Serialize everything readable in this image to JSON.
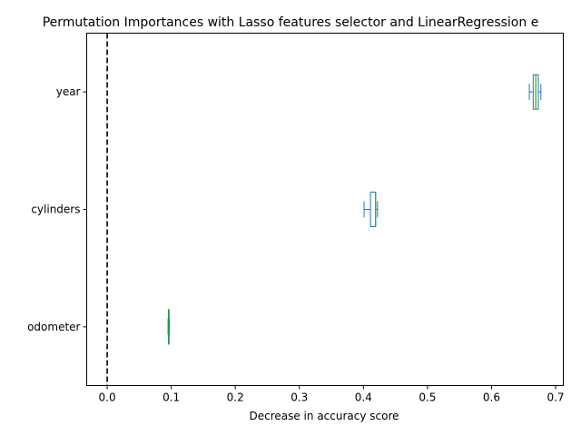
{
  "chart_data": {
    "type": "box",
    "orientation": "horizontal",
    "title": "Permutation Importances with Lasso features selector and LinearRegression e",
    "xlabel": "Decrease in accuracy score",
    "ylabel": "",
    "xlim": [
      -0.032,
      0.712
    ],
    "xticks": [
      {
        "value": 0.0,
        "label": "0.0"
      },
      {
        "value": 0.1,
        "label": "0.1"
      },
      {
        "value": 0.2,
        "label": "0.2"
      },
      {
        "value": 0.3,
        "label": "0.3"
      },
      {
        "value": 0.4,
        "label": "0.4"
      },
      {
        "value": 0.5,
        "label": "0.5"
      },
      {
        "value": 0.6,
        "label": "0.6"
      },
      {
        "value": 0.7,
        "label": "0.7"
      }
    ],
    "reference_line": {
      "x": 0.0,
      "style": "dashed",
      "color": "#000000"
    },
    "categories": [
      "year",
      "cylinders",
      "odometer"
    ],
    "boxes": [
      {
        "label": "year",
        "whisker_low": 0.659,
        "q1": 0.665,
        "median": 0.669,
        "q3": 0.673,
        "whisker_high": 0.677
      },
      {
        "label": "cylinders",
        "whisker_low": 0.401,
        "q1": 0.411,
        "median": 0.419,
        "q3": 0.419,
        "whisker_high": 0.422
      },
      {
        "label": "odometer",
        "whisker_low": 0.095,
        "q1": 0.0955,
        "median": 0.096,
        "q3": 0.0965,
        "whisker_high": 0.097
      }
    ],
    "colors": {
      "box": "#1f77b4",
      "median": "#2ca02c",
      "reference": "#000000",
      "axes": "#000000"
    }
  }
}
